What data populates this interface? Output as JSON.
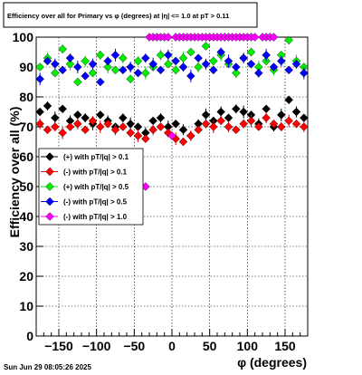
{
  "title": "Efficiency over all for Primary vs φ (degrees) at |η| <= 1.0 at pT > 0.11",
  "footer": "Sun Jun 29 08:05:26 2025",
  "chart_data": {
    "type": "scatter",
    "xlabel": "φ (degrees)",
    "ylabel": "Efficiency over all (%)",
    "xlim": [
      -180,
      180
    ],
    "ylim": [
      0,
      100
    ],
    "xticks": [
      -150,
      -100,
      -50,
      0,
      50,
      100,
      150
    ],
    "yticks": [
      0,
      10,
      20,
      30,
      40,
      50,
      60,
      70,
      80,
      90,
      100
    ],
    "grid": true,
    "legend_position": "left-middle",
    "series": [
      {
        "name": "(+) with pT/|q| > 0.1",
        "color": "#000000",
        "x": [
          -175,
          -165,
          -155,
          -145,
          -135,
          -125,
          -115,
          -105,
          -95,
          -85,
          -75,
          -65,
          -55,
          -45,
          -35,
          -25,
          -15,
          -5,
          5,
          15,
          25,
          35,
          45,
          55,
          65,
          75,
          85,
          95,
          105,
          115,
          125,
          135,
          145,
          155,
          165,
          175
        ],
        "y": [
          75,
          77,
          73,
          76,
          72,
          74,
          73,
          71,
          74,
          72,
          70,
          73,
          71,
          70,
          68,
          72,
          73,
          70,
          71,
          69,
          67,
          71,
          74,
          72,
          75,
          73,
          76,
          75,
          74,
          71,
          76,
          70,
          74,
          79,
          75,
          73
        ]
      },
      {
        "name": "(-) with pT/|q| > 0.1",
        "color": "#ff0000",
        "x": [
          -175,
          -165,
          -155,
          -145,
          -135,
          -125,
          -115,
          -105,
          -95,
          -85,
          -75,
          -65,
          -55,
          -45,
          -35,
          -25,
          -15,
          -5,
          5,
          15,
          25,
          35,
          45,
          55,
          65,
          75,
          85,
          95,
          105,
          115,
          125,
          135,
          145,
          155,
          165,
          175
        ],
        "y": [
          71,
          69,
          70,
          68,
          70,
          71,
          69,
          72,
          70,
          71,
          69,
          70,
          68,
          67,
          66,
          69,
          70,
          68,
          66,
          65,
          67,
          69,
          71,
          70,
          72,
          70,
          69,
          71,
          72,
          70,
          73,
          71,
          70,
          72,
          71,
          70
        ]
      },
      {
        "name": "(+) with pT/|q| > 0.5",
        "color": "#00ee00",
        "x": [
          -175,
          -165,
          -155,
          -145,
          -135,
          -125,
          -115,
          -105,
          -95,
          -85,
          -75,
          -65,
          -55,
          -45,
          -35,
          -25,
          -15,
          -5,
          5,
          15,
          25,
          35,
          45,
          55,
          65,
          75,
          85,
          95,
          105,
          115,
          125,
          135,
          145,
          155,
          165,
          175
        ],
        "y": [
          90,
          93,
          88,
          96,
          91,
          85,
          92,
          88,
          94,
          90,
          89,
          93,
          86,
          92,
          88,
          90,
          94,
          91,
          89,
          93,
          95,
          90,
          97,
          92,
          94,
          91,
          88,
          93,
          95,
          90,
          92,
          89,
          94,
          99,
          92,
          90
        ]
      },
      {
        "name": "(-) with pT/|q| > 0.5",
        "color": "#0000ff",
        "x": [
          -175,
          -165,
          -155,
          -145,
          -135,
          -125,
          -115,
          -105,
          -95,
          -85,
          -75,
          -65,
          -55,
          -45,
          -35,
          -25,
          -15,
          -5,
          5,
          15,
          25,
          35,
          45,
          55,
          65,
          75,
          85,
          95,
          105,
          115,
          125,
          135,
          145,
          155,
          165,
          175
        ],
        "y": [
          86,
          92,
          91,
          89,
          93,
          90,
          87,
          91,
          85,
          92,
          94,
          89,
          90,
          88,
          93,
          91,
          89,
          94,
          92,
          90,
          87,
          93,
          91,
          89,
          95,
          92,
          90,
          93,
          91,
          88,
          94,
          90,
          92,
          89,
          91,
          88
        ]
      },
      {
        "name": "(-) with pT/|q| > 1.0",
        "color": "#ff00ff",
        "x": [
          -35,
          -30,
          -25,
          -20,
          -15,
          -10,
          -5,
          0,
          5,
          10,
          15,
          20,
          25,
          30,
          35,
          40,
          45,
          50,
          55,
          60,
          65,
          70,
          75,
          80,
          85,
          90,
          95,
          100,
          105,
          110,
          120,
          125,
          130,
          135
        ],
        "y": [
          50,
          100,
          100,
          100,
          100,
          100,
          100,
          67,
          100,
          100,
          100,
          100,
          100,
          100,
          100,
          100,
          100,
          100,
          100,
          100,
          100,
          100,
          100,
          100,
          100,
          100,
          100,
          100,
          100,
          100,
          100,
          100,
          100,
          100
        ]
      }
    ]
  }
}
